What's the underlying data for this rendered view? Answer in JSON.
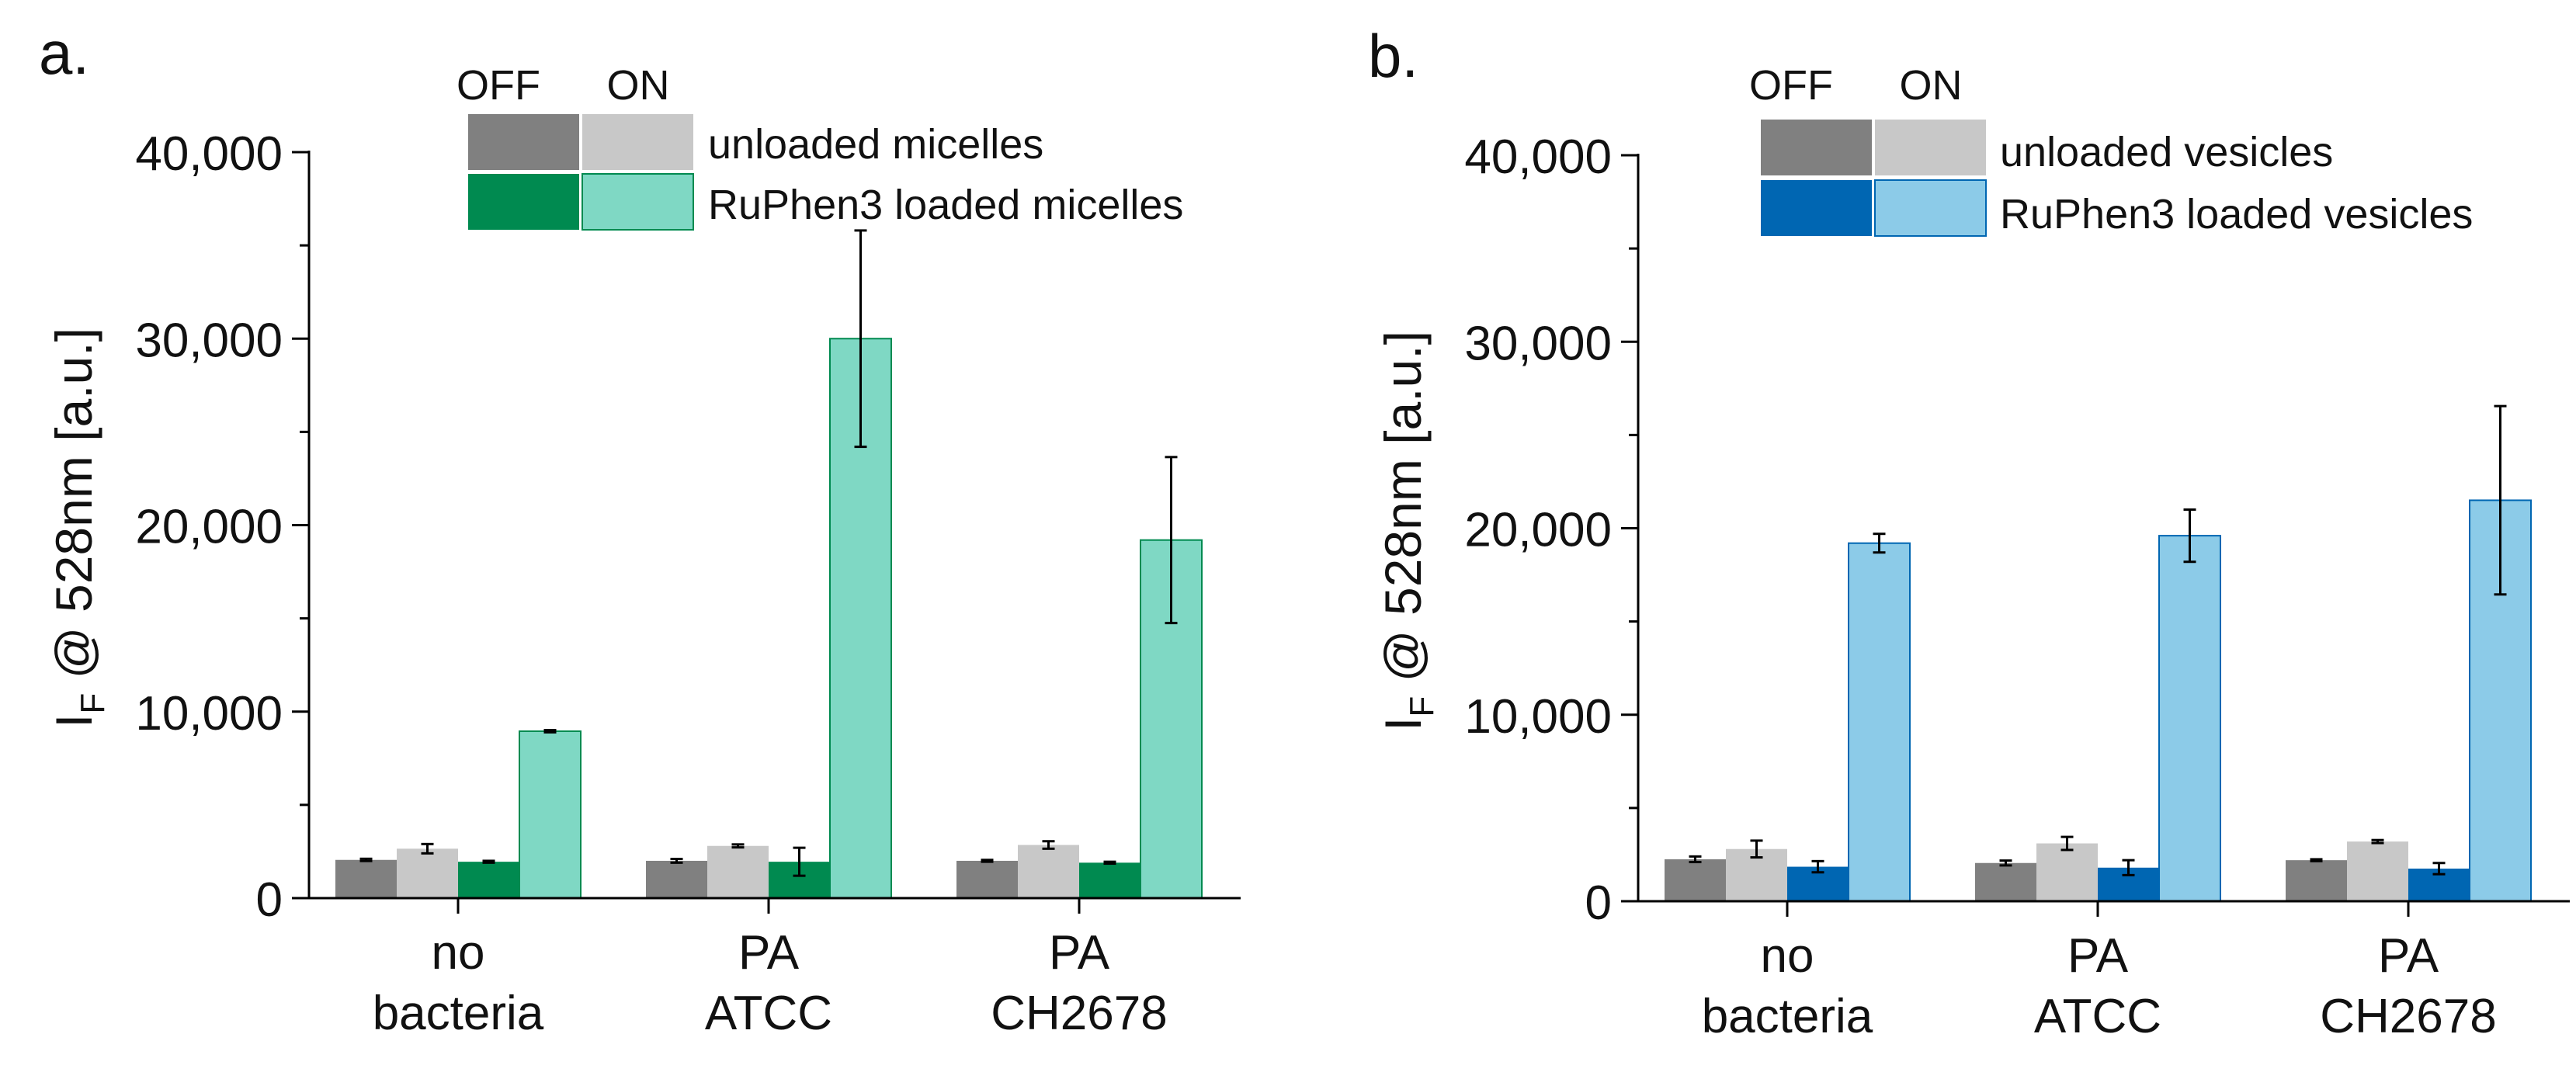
{
  "figure": {
    "panels": [
      {
        "panel_label": "a.",
        "legend": {
          "header_off": "OFF",
          "header_on": "ON",
          "rows": [
            {
              "label": "unloaded micelles",
              "off_color": "#808080",
              "on_color": "#c8c8c8"
            },
            {
              "label": "RuPhen3 loaded micelles",
              "off_color": "#008a50",
              "on_color": "#7fd8c4"
            }
          ]
        }
      },
      {
        "panel_label": "b.",
        "legend": {
          "header_off": "OFF",
          "header_on": "ON",
          "rows": [
            {
              "label": "unloaded vesicles",
              "off_color": "#808080",
              "on_color": "#c8c8c8"
            },
            {
              "label": "RuPhen3 loaded vesicles",
              "off_color": "#0066b2",
              "on_color": "#8ccbe8"
            }
          ]
        }
      }
    ]
  },
  "chart_data": [
    {
      "type": "bar",
      "title": "",
      "panel": "a.",
      "xlabel": "",
      "ylabel_main": "I",
      "ylabel_sub": "F",
      "ylabel_rest": " @ 528nm [a.u.]",
      "ylim": [
        0,
        40000
      ],
      "yticks": [
        0,
        10000,
        20000,
        30000,
        40000
      ],
      "ytick_labels": [
        "0",
        "10,000",
        "20,000",
        "30,000",
        "40,000"
      ],
      "categories": [
        [
          "no",
          "bacteria"
        ],
        [
          "PA",
          "ATCC"
        ],
        [
          "PA",
          "CH2678"
        ]
      ],
      "series": [
        {
          "name": "unloaded micelles OFF",
          "color": "#808080",
          "values": [
            2050,
            2000,
            2000
          ],
          "errors": [
            60,
            100,
            50
          ]
        },
        {
          "name": "unloaded micelles ON",
          "color": "#c8c8c8",
          "values": [
            2650,
            2800,
            2850
          ],
          "errors": [
            250,
            80,
            200
          ]
        },
        {
          "name": "RuPhen3 loaded micelles OFF",
          "color": "#008a50",
          "values": [
            1950,
            1950,
            1900
          ],
          "errors": [
            50,
            750,
            50
          ]
        },
        {
          "name": "RuPhen3 loaded micelles ON",
          "color": "#7fd8c4",
          "values": [
            8950,
            30000,
            19200
          ],
          "errors": [
            60,
            5800,
            4450
          ]
        }
      ]
    },
    {
      "type": "bar",
      "title": "",
      "panel": "b.",
      "xlabel": "",
      "ylabel_main": "I",
      "ylabel_sub": "F",
      "ylabel_rest": " @ 528nm [a.u.]",
      "ylim": [
        0,
        40000
      ],
      "yticks": [
        0,
        10000,
        20000,
        30000,
        40000
      ],
      "ytick_labels": [
        "0",
        "10,000",
        "20,000",
        "30,000",
        "40,000"
      ],
      "categories": [
        [
          "no",
          "bacteria"
        ],
        [
          "PA",
          "ATCC"
        ],
        [
          "PA",
          "CH2678"
        ]
      ],
      "series": [
        {
          "name": "unloaded vesicles OFF",
          "color": "#808080",
          "values": [
            2250,
            2050,
            2200
          ],
          "errors": [
            150,
            130,
            50
          ]
        },
        {
          "name": "unloaded vesicles ON",
          "color": "#c8c8c8",
          "values": [
            2800,
            3100,
            3200
          ],
          "errors": [
            450,
            350,
            80
          ]
        },
        {
          "name": "RuPhen3 loaded vesicles OFF",
          "color": "#0066b2",
          "values": [
            1850,
            1800,
            1750
          ],
          "errors": [
            300,
            400,
            300
          ]
        },
        {
          "name": "RuPhen3 loaded vesicles ON",
          "color": "#8ccbe8",
          "values": [
            19200,
            19600,
            21500
          ],
          "errors": [
            500,
            1400,
            5050
          ]
        }
      ]
    }
  ]
}
